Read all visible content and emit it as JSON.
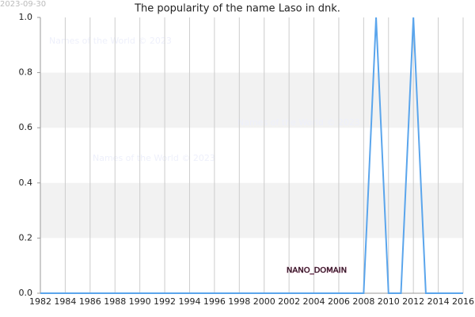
{
  "chart_data": {
    "type": "line",
    "title": "The popularity of the name Laso in dnk.",
    "date_stamp": "2023-09-30",
    "watermarks": [
      "Names of the World © 2023",
      "Names of the World © 2023",
      "Names of the World © 2023"
    ],
    "domain_label": "NANO_DOMAIN",
    "x": [
      1982,
      1983,
      1984,
      1985,
      1986,
      1987,
      1988,
      1989,
      1990,
      1991,
      1992,
      1993,
      1994,
      1995,
      1996,
      1997,
      1998,
      1999,
      2000,
      2001,
      2002,
      2003,
      2004,
      2005,
      2006,
      2007,
      2008,
      2009,
      2010,
      2011,
      2012,
      2013,
      2014,
      2015,
      2016
    ],
    "series": [
      {
        "color": "#5aa5ec",
        "values": [
          0,
          0,
          0,
          0,
          0,
          0,
          0,
          0,
          0,
          0,
          0,
          0,
          0,
          0,
          0,
          0,
          0,
          0,
          0,
          0,
          0,
          0,
          0,
          0,
          0,
          0,
          0,
          1,
          0,
          0,
          1,
          0,
          0,
          0,
          0
        ]
      }
    ],
    "xlim": [
      1982,
      2016
    ],
    "xticks": [
      1982,
      1984,
      1986,
      1988,
      1990,
      1992,
      1994,
      1996,
      1998,
      2000,
      2002,
      2004,
      2006,
      2008,
      2010,
      2012,
      2014,
      2016
    ],
    "ylim": [
      0,
      1
    ],
    "yticks": [
      {
        "value": 0,
        "label": "0.0"
      },
      0.2,
      0.4,
      0.6,
      0.8,
      {
        "value": 1,
        "label": "1.0"
      }
    ],
    "grid": true,
    "banded": true
  }
}
